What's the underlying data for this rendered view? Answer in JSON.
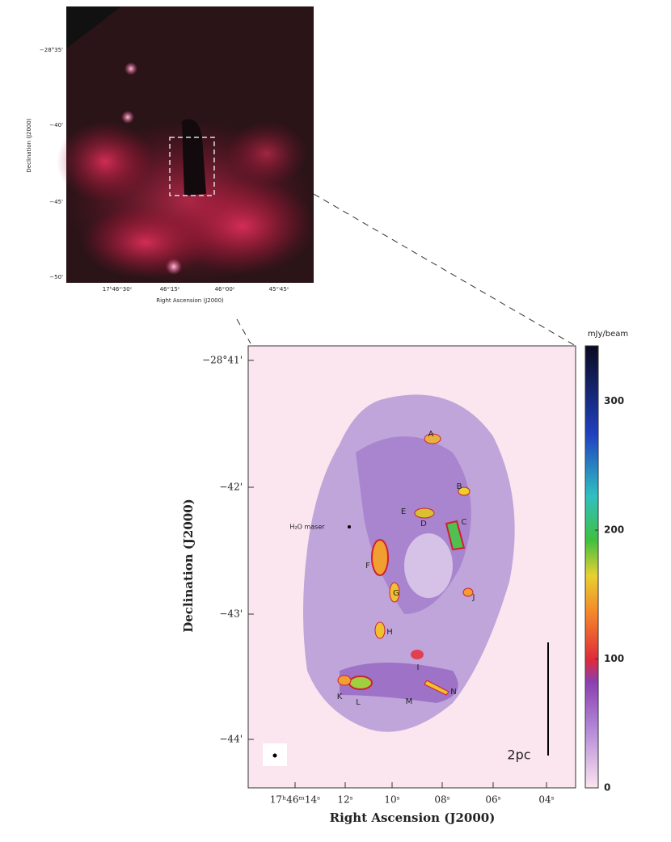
{
  "top_panel": {
    "xlabel": "Right Ascension (J2000)",
    "ylabel": "Declination (J2000)",
    "xticks": [
      "17ʰ46ᵐ30ˢ",
      "46ᵐ15ˢ",
      "46ᵐ00ˢ",
      "45ᵐ45ˢ"
    ],
    "yticks": [
      "−28°35'",
      "−40'",
      "−45'",
      "−50'"
    ]
  },
  "main_panel": {
    "xlabel": "Right Ascension (J2000)",
    "ylabel": "Declination (J2000)",
    "xticks": [
      "17ʰ46ᵐ14ˢ",
      "12ˢ",
      "10ˢ",
      "08ˢ",
      "06ˢ",
      "04ˢ"
    ],
    "yticks": [
      "−28°41'",
      "−42'",
      "−43'",
      "−44'"
    ],
    "sources": [
      "A",
      "B",
      "C",
      "D",
      "E",
      "F",
      "G",
      "H",
      "I",
      "J",
      "K",
      "L",
      "M",
      "N"
    ],
    "maser_label": "H₂O maser",
    "scale_label": "2pc"
  },
  "colorbar": {
    "unit": "mJy/beam",
    "lim": [
      0,
      343
    ],
    "ticks": [
      0,
      100,
      200,
      300
    ]
  }
}
